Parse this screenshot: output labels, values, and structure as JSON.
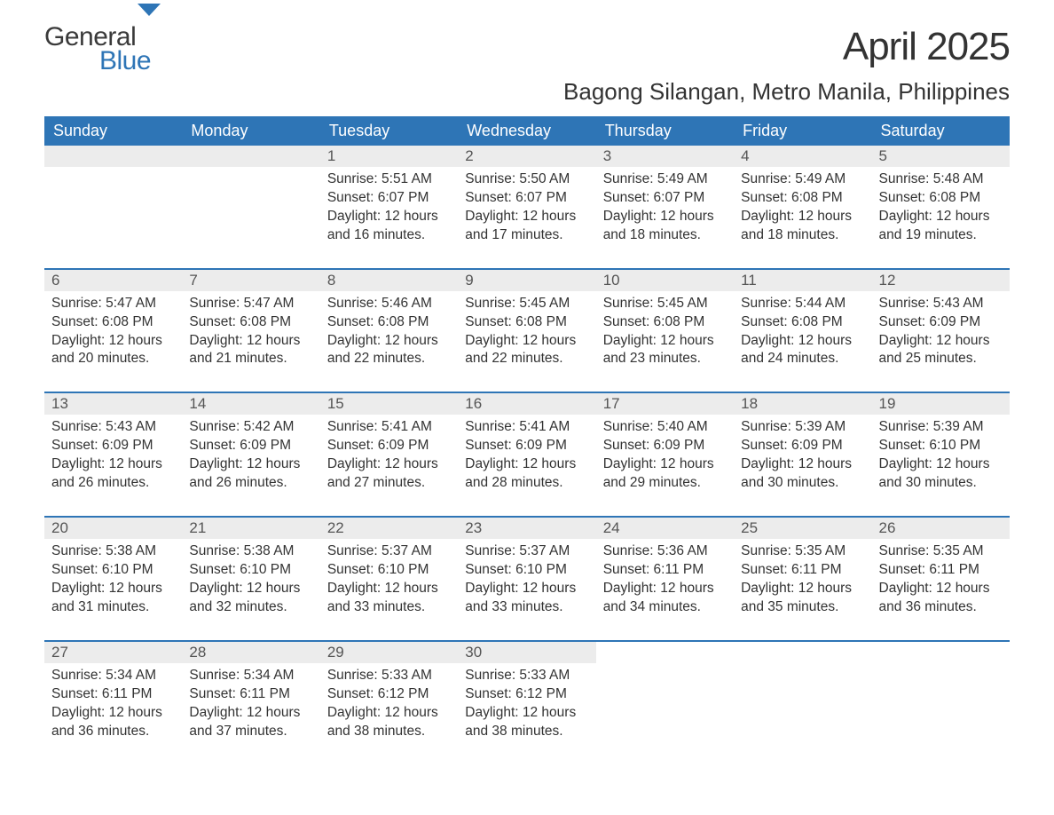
{
  "logo": {
    "general": "General",
    "blue": "Blue",
    "icon_color": "#2e75b6",
    "general_color": "#3a3a3a"
  },
  "title": "April 2025",
  "location": "Bagong Silangan, Metro Manila, Philippines",
  "colors": {
    "header_bg": "#2e75b6",
    "header_text": "#ffffff",
    "daynum_bg": "#ececec",
    "daynum_text": "#555555",
    "body_text": "#333333",
    "row_border": "#2e75b6",
    "page_bg": "#ffffff"
  },
  "typography": {
    "title_fontsize": 44,
    "location_fontsize": 26,
    "header_fontsize": 18,
    "daynum_fontsize": 17,
    "cell_fontsize": 15.5
  },
  "day_headers": [
    "Sunday",
    "Monday",
    "Tuesday",
    "Wednesday",
    "Thursday",
    "Friday",
    "Saturday"
  ],
  "weeks": [
    [
      null,
      null,
      {
        "n": "1",
        "sunrise": "Sunrise: 5:51 AM",
        "sunset": "Sunset: 6:07 PM",
        "d1": "Daylight: 12 hours",
        "d2": "and 16 minutes."
      },
      {
        "n": "2",
        "sunrise": "Sunrise: 5:50 AM",
        "sunset": "Sunset: 6:07 PM",
        "d1": "Daylight: 12 hours",
        "d2": "and 17 minutes."
      },
      {
        "n": "3",
        "sunrise": "Sunrise: 5:49 AM",
        "sunset": "Sunset: 6:07 PM",
        "d1": "Daylight: 12 hours",
        "d2": "and 18 minutes."
      },
      {
        "n": "4",
        "sunrise": "Sunrise: 5:49 AM",
        "sunset": "Sunset: 6:08 PM",
        "d1": "Daylight: 12 hours",
        "d2": "and 18 minutes."
      },
      {
        "n": "5",
        "sunrise": "Sunrise: 5:48 AM",
        "sunset": "Sunset: 6:08 PM",
        "d1": "Daylight: 12 hours",
        "d2": "and 19 minutes."
      }
    ],
    [
      {
        "n": "6",
        "sunrise": "Sunrise: 5:47 AM",
        "sunset": "Sunset: 6:08 PM",
        "d1": "Daylight: 12 hours",
        "d2": "and 20 minutes."
      },
      {
        "n": "7",
        "sunrise": "Sunrise: 5:47 AM",
        "sunset": "Sunset: 6:08 PM",
        "d1": "Daylight: 12 hours",
        "d2": "and 21 minutes."
      },
      {
        "n": "8",
        "sunrise": "Sunrise: 5:46 AM",
        "sunset": "Sunset: 6:08 PM",
        "d1": "Daylight: 12 hours",
        "d2": "and 22 minutes."
      },
      {
        "n": "9",
        "sunrise": "Sunrise: 5:45 AM",
        "sunset": "Sunset: 6:08 PM",
        "d1": "Daylight: 12 hours",
        "d2": "and 22 minutes."
      },
      {
        "n": "10",
        "sunrise": "Sunrise: 5:45 AM",
        "sunset": "Sunset: 6:08 PM",
        "d1": "Daylight: 12 hours",
        "d2": "and 23 minutes."
      },
      {
        "n": "11",
        "sunrise": "Sunrise: 5:44 AM",
        "sunset": "Sunset: 6:08 PM",
        "d1": "Daylight: 12 hours",
        "d2": "and 24 minutes."
      },
      {
        "n": "12",
        "sunrise": "Sunrise: 5:43 AM",
        "sunset": "Sunset: 6:09 PM",
        "d1": "Daylight: 12 hours",
        "d2": "and 25 minutes."
      }
    ],
    [
      {
        "n": "13",
        "sunrise": "Sunrise: 5:43 AM",
        "sunset": "Sunset: 6:09 PM",
        "d1": "Daylight: 12 hours",
        "d2": "and 26 minutes."
      },
      {
        "n": "14",
        "sunrise": "Sunrise: 5:42 AM",
        "sunset": "Sunset: 6:09 PM",
        "d1": "Daylight: 12 hours",
        "d2": "and 26 minutes."
      },
      {
        "n": "15",
        "sunrise": "Sunrise: 5:41 AM",
        "sunset": "Sunset: 6:09 PM",
        "d1": "Daylight: 12 hours",
        "d2": "and 27 minutes."
      },
      {
        "n": "16",
        "sunrise": "Sunrise: 5:41 AM",
        "sunset": "Sunset: 6:09 PM",
        "d1": "Daylight: 12 hours",
        "d2": "and 28 minutes."
      },
      {
        "n": "17",
        "sunrise": "Sunrise: 5:40 AM",
        "sunset": "Sunset: 6:09 PM",
        "d1": "Daylight: 12 hours",
        "d2": "and 29 minutes."
      },
      {
        "n": "18",
        "sunrise": "Sunrise: 5:39 AM",
        "sunset": "Sunset: 6:09 PM",
        "d1": "Daylight: 12 hours",
        "d2": "and 30 minutes."
      },
      {
        "n": "19",
        "sunrise": "Sunrise: 5:39 AM",
        "sunset": "Sunset: 6:10 PM",
        "d1": "Daylight: 12 hours",
        "d2": "and 30 minutes."
      }
    ],
    [
      {
        "n": "20",
        "sunrise": "Sunrise: 5:38 AM",
        "sunset": "Sunset: 6:10 PM",
        "d1": "Daylight: 12 hours",
        "d2": "and 31 minutes."
      },
      {
        "n": "21",
        "sunrise": "Sunrise: 5:38 AM",
        "sunset": "Sunset: 6:10 PM",
        "d1": "Daylight: 12 hours",
        "d2": "and 32 minutes."
      },
      {
        "n": "22",
        "sunrise": "Sunrise: 5:37 AM",
        "sunset": "Sunset: 6:10 PM",
        "d1": "Daylight: 12 hours",
        "d2": "and 33 minutes."
      },
      {
        "n": "23",
        "sunrise": "Sunrise: 5:37 AM",
        "sunset": "Sunset: 6:10 PM",
        "d1": "Daylight: 12 hours",
        "d2": "and 33 minutes."
      },
      {
        "n": "24",
        "sunrise": "Sunrise: 5:36 AM",
        "sunset": "Sunset: 6:11 PM",
        "d1": "Daylight: 12 hours",
        "d2": "and 34 minutes."
      },
      {
        "n": "25",
        "sunrise": "Sunrise: 5:35 AM",
        "sunset": "Sunset: 6:11 PM",
        "d1": "Daylight: 12 hours",
        "d2": "and 35 minutes."
      },
      {
        "n": "26",
        "sunrise": "Sunrise: 5:35 AM",
        "sunset": "Sunset: 6:11 PM",
        "d1": "Daylight: 12 hours",
        "d2": "and 36 minutes."
      }
    ],
    [
      {
        "n": "27",
        "sunrise": "Sunrise: 5:34 AM",
        "sunset": "Sunset: 6:11 PM",
        "d1": "Daylight: 12 hours",
        "d2": "and 36 minutes."
      },
      {
        "n": "28",
        "sunrise": "Sunrise: 5:34 AM",
        "sunset": "Sunset: 6:11 PM",
        "d1": "Daylight: 12 hours",
        "d2": "and 37 minutes."
      },
      {
        "n": "29",
        "sunrise": "Sunrise: 5:33 AM",
        "sunset": "Sunset: 6:12 PM",
        "d1": "Daylight: 12 hours",
        "d2": "and 38 minutes."
      },
      {
        "n": "30",
        "sunrise": "Sunrise: 5:33 AM",
        "sunset": "Sunset: 6:12 PM",
        "d1": "Daylight: 12 hours",
        "d2": "and 38 minutes."
      },
      null,
      null,
      null
    ]
  ]
}
